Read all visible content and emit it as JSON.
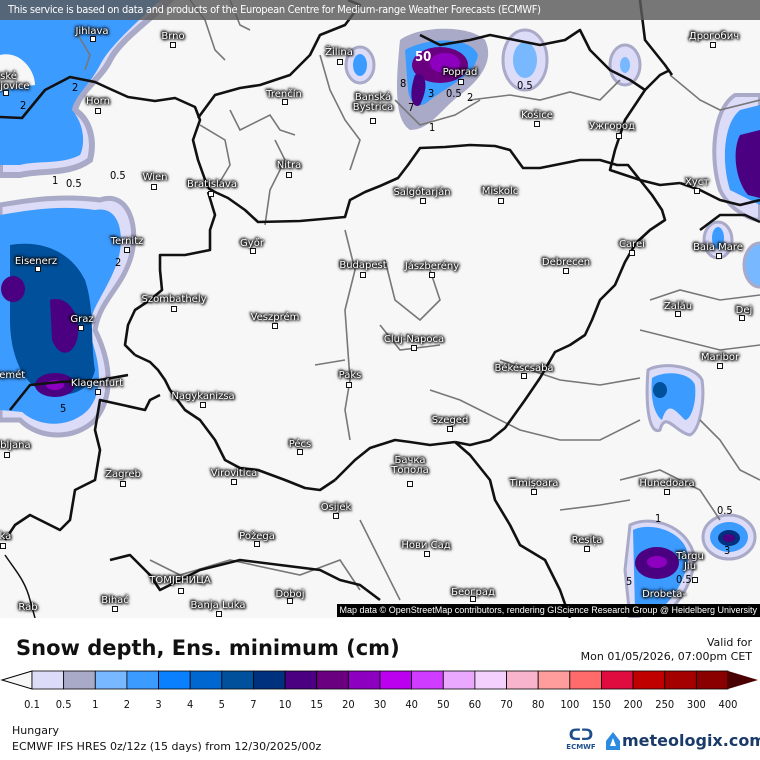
{
  "banner": "This service is based on data and products of the European Centre for Medium-range Weather Forecasts (ECMWF)",
  "attribution": "Map data © OpenStreetMap contributors, rendering GIScience Research Group @ Heidelberg University",
  "cities": [
    "Jihlava",
    "Brno",
    "České\nBudějovice",
    "Horn",
    "Wien",
    "Bratislava",
    "Trenčín",
    "Žilina",
    "Banská\nBystrica",
    "Poprad",
    "Košice",
    "Ужгород",
    "Дрогобич",
    "Nitra",
    "Salgótarján",
    "Miskolc",
    "Хуст",
    "Győr",
    "Ternitz",
    "Eisenerz",
    "Budapest",
    "Jászberény",
    "Debrecen",
    "Carei",
    "Baia Mare",
    "Szombathely",
    "Graz",
    "Veszprém",
    "Zalău",
    "Dej",
    "Kecskemét",
    "Cluj-Napoca",
    "Maribor",
    "Klagenfurt",
    "Paks",
    "Békéscsaba",
    "Nagykanizsa",
    "Szeged",
    "Pécs",
    "Ljubljana",
    "Zagreb",
    "Virovitica",
    "Бачка\nТопола",
    "Timișoara",
    "Hunedoara",
    "Osijek",
    "Rijeka",
    "Požega",
    "Reșița",
    "Нови Сад",
    "Târgu\nJiu",
    "Drobeta-",
    "ТОМЈЕНИЦА",
    "Bihać",
    "Banja Luka",
    "Doboj",
    "Београд",
    "Rab"
  ],
  "contour_labels": [
    "2",
    "2",
    "1",
    "0.5",
    "0.5",
    "2",
    "50",
    "8",
    "3",
    "0.5",
    "2",
    "0.5",
    "7",
    "1",
    "5",
    "1",
    "0.5",
    "0.5",
    "3",
    "5"
  ],
  "legend": {
    "title": "Snow depth, Ens. minimum (cm)",
    "valid_label": "Valid for",
    "valid_time": "Mon 01/05/2026, 07:00pm CET",
    "ticks": [
      "0.1",
      "0.5",
      "1",
      "2",
      "3",
      "4",
      "5",
      "7",
      "10",
      "15",
      "20",
      "30",
      "40",
      "50",
      "60",
      "70",
      "80",
      "100",
      "150",
      "200",
      "250",
      "300",
      "400"
    ],
    "colors": [
      "#dcdcf8",
      "#a9a9c8",
      "#78b8ff",
      "#3c9bff",
      "#0a80ff",
      "#0066d0",
      "#00509c",
      "#00317e",
      "#4b0082",
      "#6a0080",
      "#8e00c0",
      "#bb00f0",
      "#d03cff",
      "#eaa8ff",
      "#f4d0ff",
      "#f8b4cc",
      "#ff9c9c",
      "#ff6a6a",
      "#e00c40",
      "#c00000",
      "#a40000",
      "#8a0000"
    ],
    "under_color": "#f7f7f7",
    "over_color": "#4a0000"
  },
  "region": "Hungary",
  "model": "ECMWF IFS HRES 0z/12z (15 days) from  12/30/2025/00z",
  "logos": {
    "ecmwf": "ECMWF",
    "meteologix": "meteologix.com"
  }
}
